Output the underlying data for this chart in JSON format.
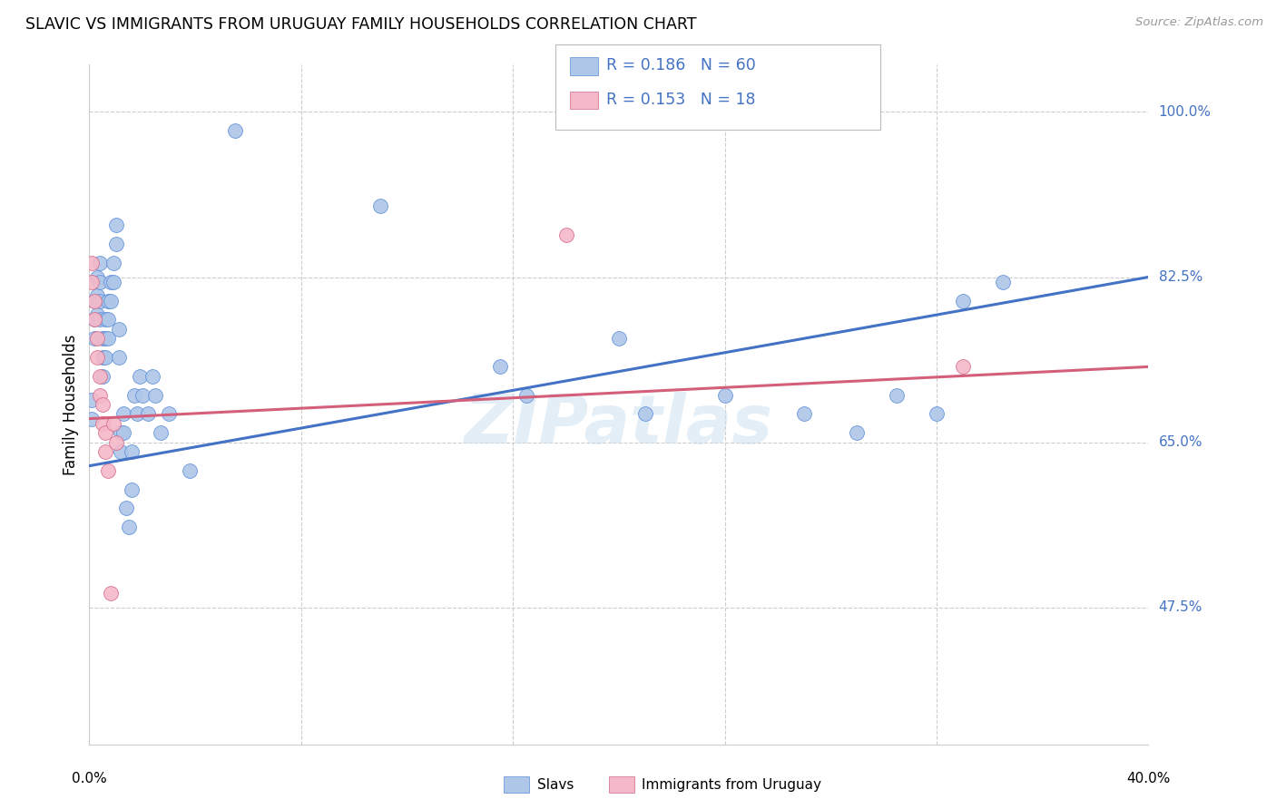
{
  "title": "SLAVIC VS IMMIGRANTS FROM URUGUAY FAMILY HOUSEHOLDS CORRELATION CHART",
  "source": "Source: ZipAtlas.com",
  "ylabel": "Family Households",
  "ytick_labels": [
    "100.0%",
    "82.5%",
    "65.0%",
    "47.5%"
  ],
  "ytick_values": [
    1.0,
    0.825,
    0.65,
    0.475
  ],
  "xlim": [
    0.0,
    0.4
  ],
  "ylim": [
    0.33,
    1.05
  ],
  "legend_line1": "R = 0.186   N = 60",
  "legend_line2": "R = 0.153   N = 18",
  "color_slavs_fill": "#aec6e8",
  "color_slavs_edge": "#5b8dd9",
  "color_uruguay_fill": "#f5b8c8",
  "color_uruguay_edge": "#d4688a",
  "color_slavs_line": "#4472c4",
  "color_uruguay_line": "#d45f7a",
  "color_legend_text": "#4472c4",
  "color_ytick": "#4472c4",
  "watermark": "ZIPatlas",
  "slavs_x": [
    0.001,
    0.001,
    0.002,
    0.002,
    0.002,
    0.003,
    0.003,
    0.003,
    0.004,
    0.004,
    0.004,
    0.004,
    0.005,
    0.005,
    0.005,
    0.006,
    0.006,
    0.006,
    0.007,
    0.007,
    0.007,
    0.008,
    0.008,
    0.009,
    0.009,
    0.01,
    0.01,
    0.011,
    0.011,
    0.012,
    0.012,
    0.013,
    0.013,
    0.014,
    0.015,
    0.016,
    0.016,
    0.017,
    0.018,
    0.019,
    0.02,
    0.022,
    0.024,
    0.025,
    0.027,
    0.03,
    0.038,
    0.055,
    0.11,
    0.155,
    0.165,
    0.2,
    0.21,
    0.24,
    0.27,
    0.29,
    0.305,
    0.32,
    0.33,
    0.345
  ],
  "slavs_y": [
    0.695,
    0.675,
    0.8,
    0.78,
    0.76,
    0.825,
    0.805,
    0.785,
    0.84,
    0.82,
    0.8,
    0.78,
    0.76,
    0.74,
    0.72,
    0.78,
    0.76,
    0.74,
    0.8,
    0.78,
    0.76,
    0.82,
    0.8,
    0.84,
    0.82,
    0.88,
    0.86,
    0.77,
    0.74,
    0.66,
    0.64,
    0.68,
    0.66,
    0.58,
    0.56,
    0.6,
    0.64,
    0.7,
    0.68,
    0.72,
    0.7,
    0.68,
    0.72,
    0.7,
    0.66,
    0.68,
    0.62,
    0.98,
    0.9,
    0.73,
    0.7,
    0.76,
    0.68,
    0.7,
    0.68,
    0.66,
    0.7,
    0.68,
    0.8,
    0.82
  ],
  "uruguay_x": [
    0.001,
    0.001,
    0.002,
    0.002,
    0.003,
    0.003,
    0.004,
    0.004,
    0.005,
    0.005,
    0.006,
    0.006,
    0.007,
    0.008,
    0.009,
    0.01,
    0.18,
    0.33
  ],
  "uruguay_y": [
    0.84,
    0.82,
    0.8,
    0.78,
    0.76,
    0.74,
    0.72,
    0.7,
    0.69,
    0.67,
    0.66,
    0.64,
    0.62,
    0.49,
    0.67,
    0.65,
    0.87,
    0.73
  ]
}
